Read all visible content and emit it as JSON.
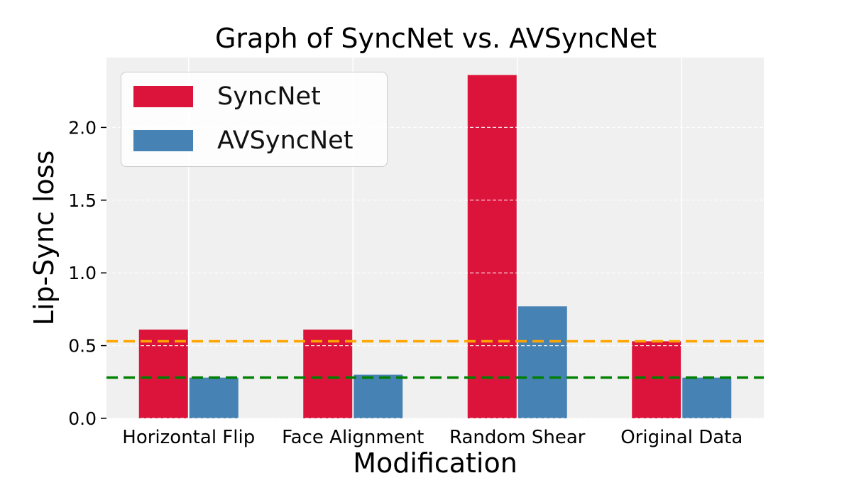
{
  "chart_data": {
    "type": "bar",
    "title": "Graph of SyncNet vs. AVSyncNet",
    "xlabel": "Modification",
    "ylabel": "Lip-Sync loss",
    "categories": [
      "Horizontal Flip",
      "Face Alignment",
      "Random Shear",
      "Original Data"
    ],
    "series": [
      {
        "name": "SyncNet",
        "color": "#dc143c",
        "values": [
          0.61,
          0.61,
          2.36,
          0.53
        ]
      },
      {
        "name": "AVSyncNet",
        "color": "#4682b4",
        "values": [
          0.28,
          0.3,
          0.77,
          0.28
        ]
      }
    ],
    "reference_lines": [
      {
        "y": 0.53,
        "color": "#ffa500",
        "style": "dashed"
      },
      {
        "y": 0.28,
        "color": "#008000",
        "style": "dashed"
      }
    ],
    "yticks": [
      "0.0",
      "0.5",
      "1.0",
      "1.5",
      "2.0"
    ],
    "ylim": [
      0,
      2.45
    ],
    "grid": true,
    "legend_position": "upper-left"
  }
}
